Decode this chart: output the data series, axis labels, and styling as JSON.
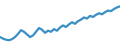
{
  "x": [
    0,
    1,
    2,
    3,
    4,
    5,
    6,
    7,
    8,
    9,
    10,
    11,
    12,
    13,
    14,
    15,
    16,
    17,
    18,
    19,
    20,
    21,
    22,
    23,
    24,
    25,
    26,
    27,
    28,
    29,
    30,
    31,
    32,
    33,
    34,
    35,
    36,
    37,
    38,
    39,
    40
  ],
  "y": [
    30,
    27,
    25,
    24,
    26,
    30,
    36,
    43,
    40,
    35,
    30,
    33,
    40,
    47,
    44,
    38,
    42,
    40,
    45,
    42,
    48,
    52,
    49,
    54,
    58,
    55,
    60,
    63,
    67,
    65,
    70,
    68,
    72,
    75,
    73,
    77,
    80,
    79,
    83,
    86,
    88
  ],
  "line_color": "#3a8fc4",
  "background_color": "#ffffff",
  "linewidth": 1.6,
  "ylim": [
    15,
    100
  ],
  "xlim": [
    0,
    40
  ]
}
